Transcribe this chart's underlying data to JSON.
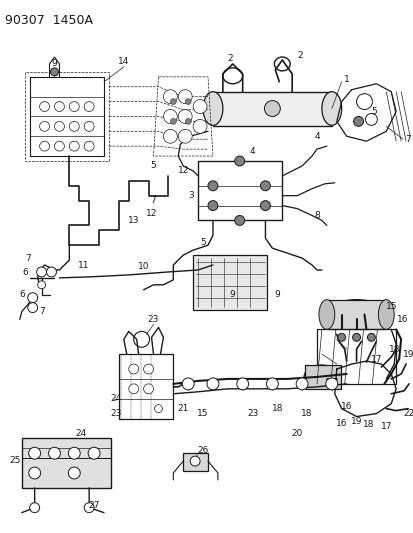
{
  "title": "90307  1450A",
  "bg_color": "#ffffff",
  "line_color": "#1a1a1a",
  "title_fontsize": 10,
  "label_fontsize": 6.5,
  "fig_width": 4.14,
  "fig_height": 5.33,
  "dpi": 100
}
